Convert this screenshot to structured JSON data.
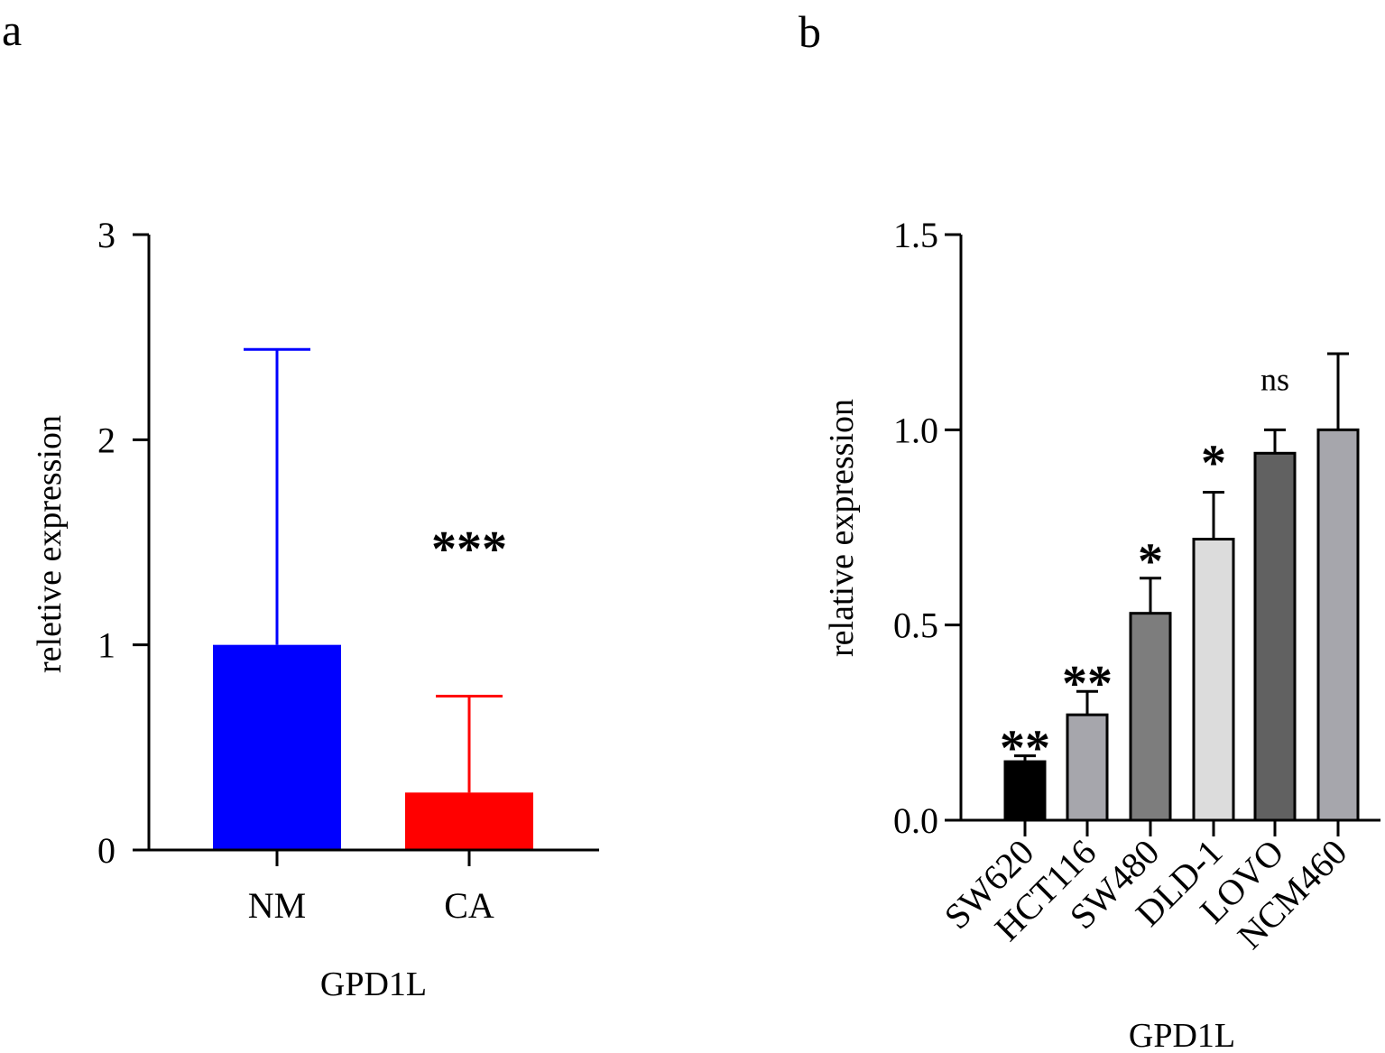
{
  "chart_data": [
    {
      "panel": "a",
      "type": "bar",
      "categories": [
        "NM",
        "CA"
      ],
      "values": [
        1.0,
        0.28
      ],
      "error_upper": [
        2.44,
        0.75
      ],
      "colors": [
        "#0000ff",
        "#ff0000"
      ],
      "significance": [
        "",
        "***"
      ],
      "xlabel": "GPD1L",
      "ylabel": "reletive expression",
      "ylim": [
        0,
        3
      ],
      "yticks": [
        "0",
        "1",
        "2",
        "3"
      ]
    },
    {
      "panel": "b",
      "type": "bar",
      "categories": [
        "SW620",
        "HCT116",
        "SW480",
        "DLD-1",
        "LOVO",
        "NCM460"
      ],
      "values": [
        0.15,
        0.27,
        0.53,
        0.72,
        0.94,
        1.0
      ],
      "error_upper": [
        0.165,
        0.33,
        0.62,
        0.84,
        1.0,
        1.195
      ],
      "colors": [
        "#000000",
        "#a6a6ac",
        "#7d7d7d",
        "#dcdcdc",
        "#616161",
        "#a6a6ac"
      ],
      "significance": [
        "**",
        "**",
        "*",
        "*",
        "ns",
        ""
      ],
      "xlabel": "GPD1L",
      "ylabel": "relative expression",
      "ylim": [
        0,
        1.5
      ],
      "yticks": [
        "0.0",
        "0.5",
        "1.0",
        "1.5"
      ]
    }
  ]
}
